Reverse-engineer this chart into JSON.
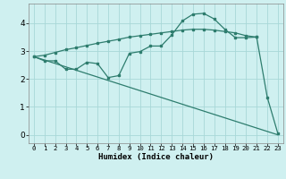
{
  "bg_color": "#cff0f0",
  "line_color": "#2e7d6e",
  "grid_color": "#a8d8d8",
  "xlabel": "Humidex (Indice chaleur)",
  "xlim": [
    -0.5,
    23.5
  ],
  "ylim": [
    -0.3,
    4.7
  ],
  "yticks": [
    0,
    1,
    2,
    3,
    4
  ],
  "xticks": [
    0,
    1,
    2,
    3,
    4,
    5,
    6,
    7,
    8,
    9,
    10,
    11,
    12,
    13,
    14,
    15,
    16,
    17,
    18,
    19,
    20,
    21,
    22,
    23
  ],
  "line1_x": [
    0,
    23
  ],
  "line1_y": [
    2.8,
    0.0
  ],
  "line2_x": [
    0,
    1,
    2,
    3,
    4,
    5,
    6,
    7,
    8,
    9,
    10,
    11,
    12,
    13,
    14,
    15,
    16,
    17,
    18,
    19,
    20,
    21,
    22,
    23
  ],
  "line2_y": [
    2.8,
    2.65,
    2.65,
    2.35,
    2.35,
    2.6,
    2.55,
    2.05,
    2.12,
    2.92,
    2.98,
    3.18,
    3.18,
    3.58,
    4.08,
    4.32,
    4.35,
    4.15,
    3.78,
    3.48,
    3.48,
    3.5,
    1.35,
    0.05
  ],
  "line3_x": [
    0,
    1,
    2,
    3,
    4,
    5,
    6,
    7,
    8,
    9,
    10,
    11,
    12,
    13,
    14,
    15,
    16,
    17,
    18,
    19,
    20,
    21
  ],
  "line3_y": [
    2.8,
    2.85,
    2.95,
    3.05,
    3.12,
    3.2,
    3.28,
    3.35,
    3.42,
    3.5,
    3.55,
    3.6,
    3.65,
    3.7,
    3.75,
    3.78,
    3.78,
    3.75,
    3.7,
    3.65,
    3.55,
    3.5
  ]
}
